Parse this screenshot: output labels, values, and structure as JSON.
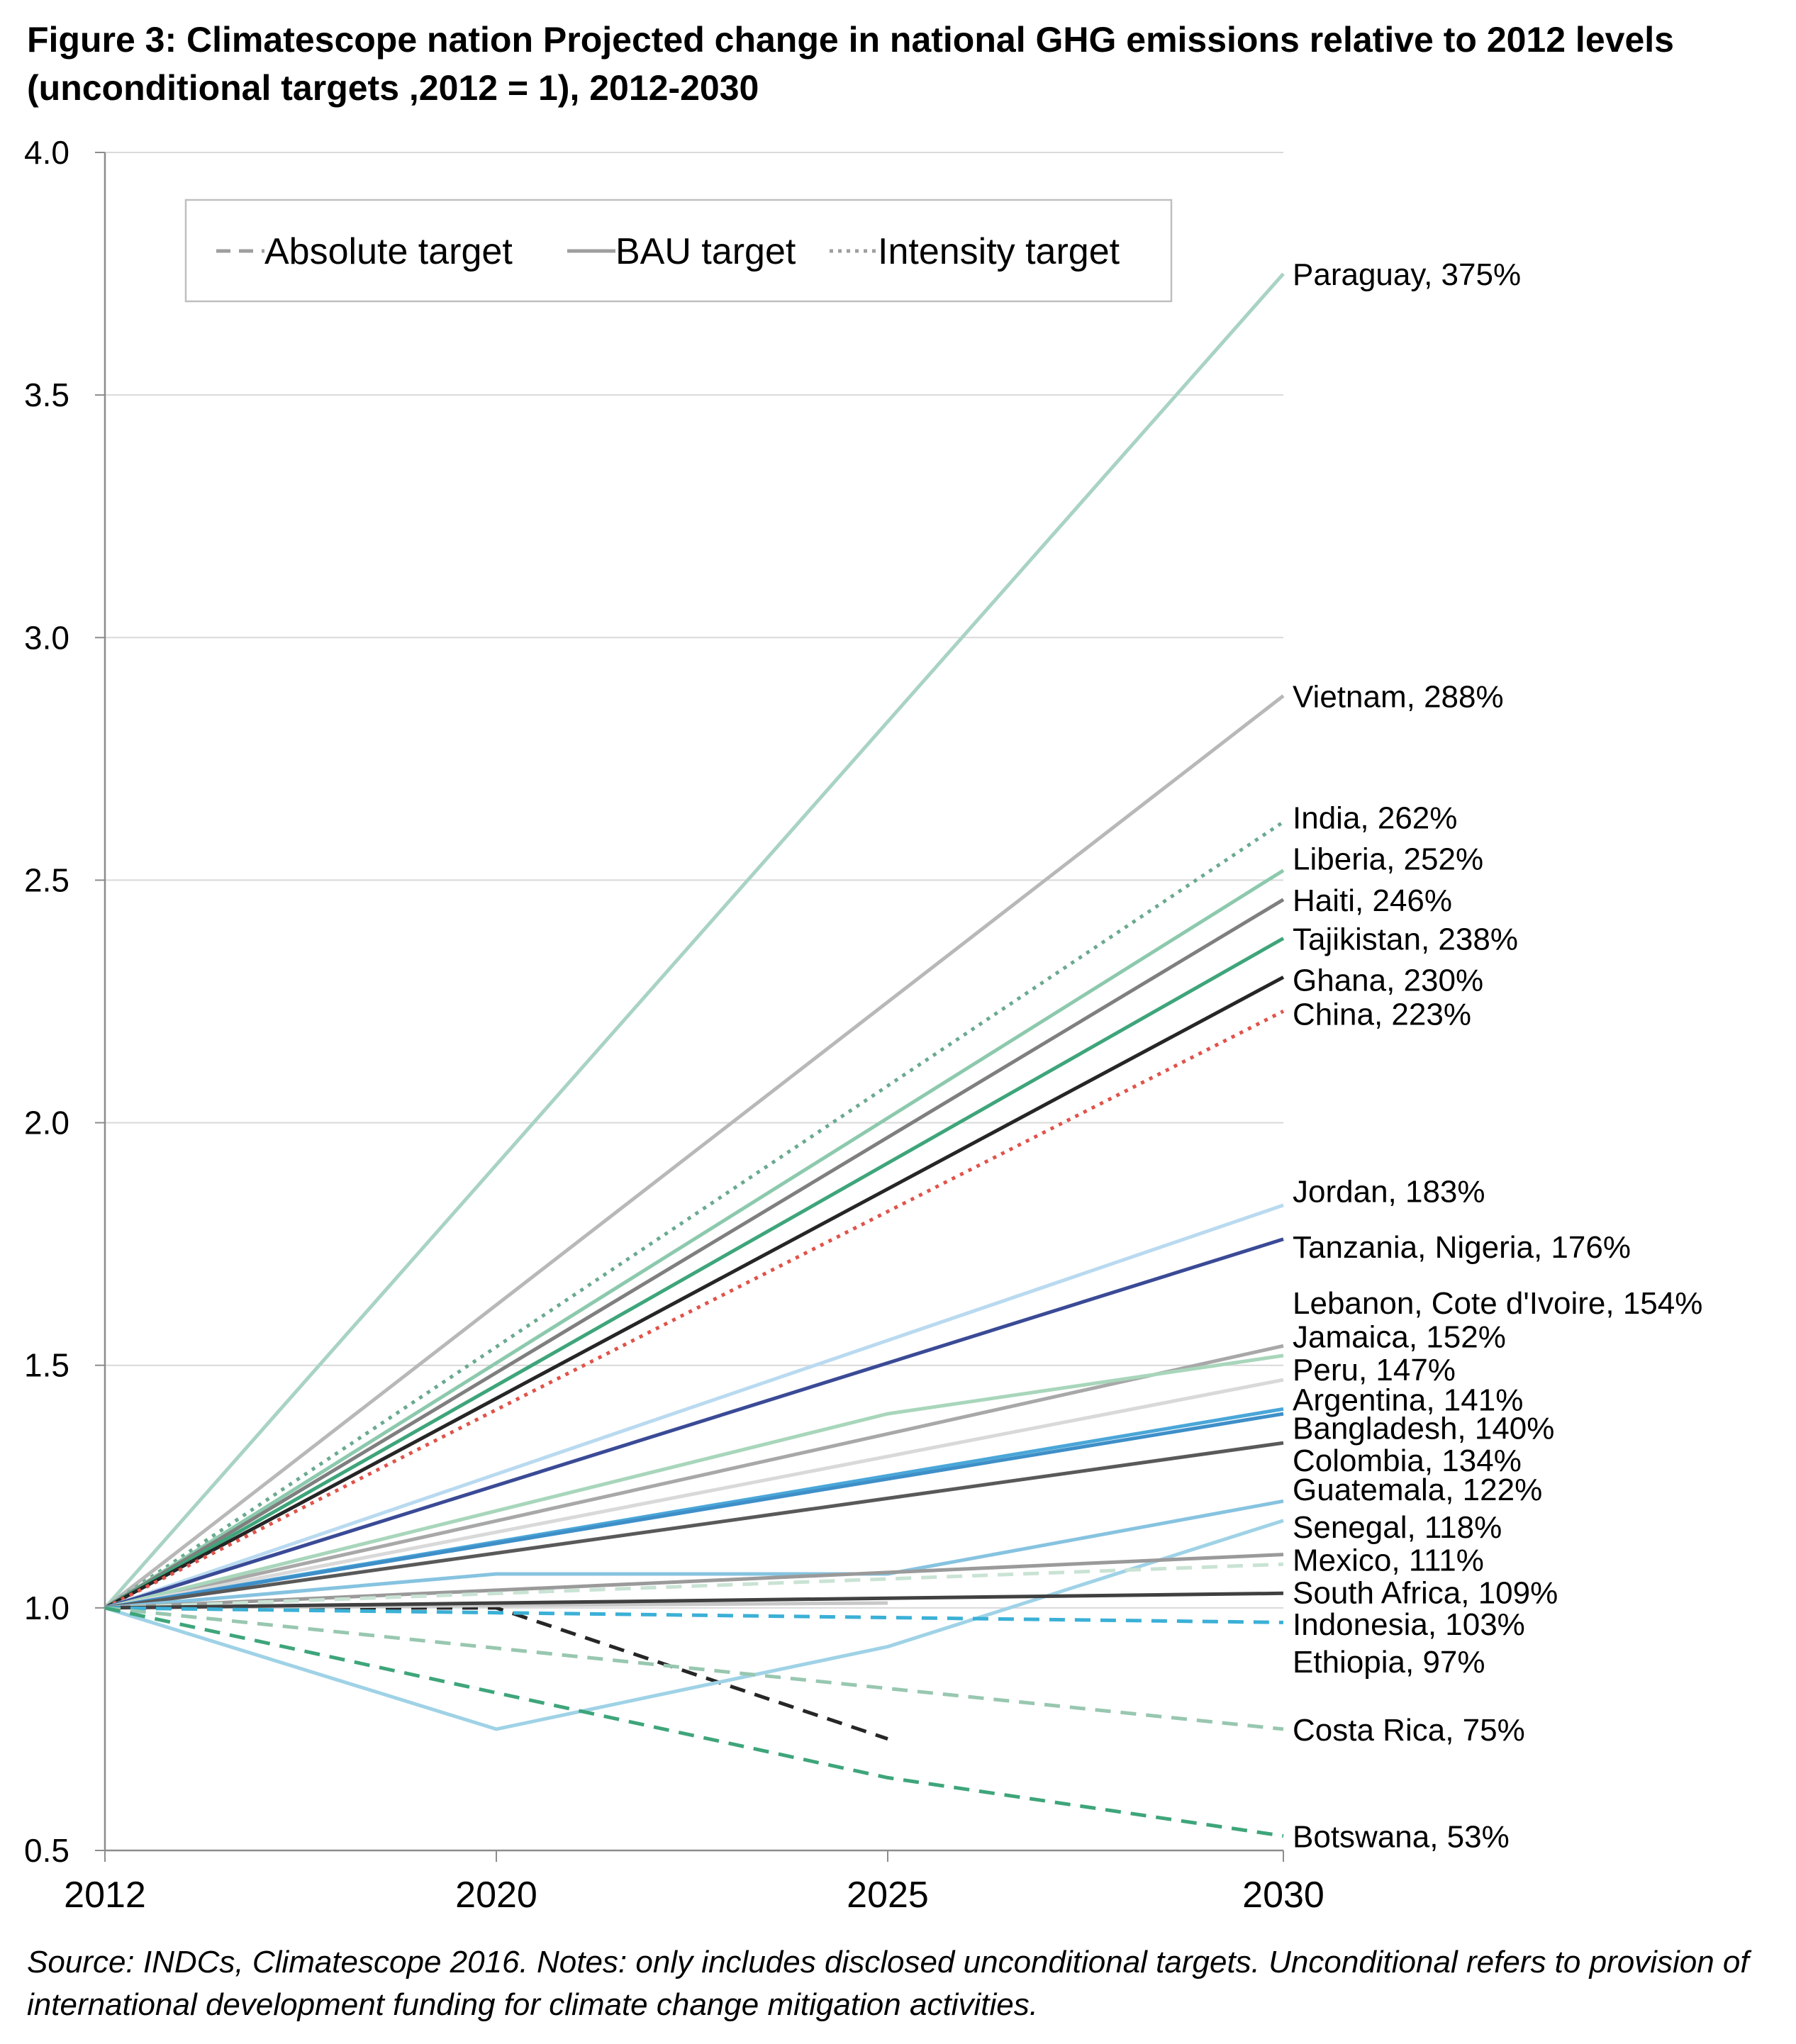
{
  "title": "Figure 3: Climatescope nation Projected change in national GHG emissions relative to 2012 levels (unconditional targets ,2012 = 1), 2012-2030",
  "source": "Source: INDCs, Climatescope 2016. Notes: only includes disclosed unconditional targets. Unconditional refers to provision of international development funding for climate change mitigation activities.",
  "chart_data": {
    "type": "line",
    "x_categories": [
      "2012",
      "2020",
      "2025",
      "2030"
    ],
    "y_ticks": [
      "0.5",
      "1.0",
      "1.5",
      "2.0",
      "2.5",
      "3.0",
      "3.5",
      "4.0"
    ],
    "ylim": [
      0.5,
      4.0
    ],
    "grid": "horizontal",
    "legend_position": "top-left",
    "legend": [
      {
        "label": "Absolute target",
        "style": "dashed",
        "color": "#9e9e9e"
      },
      {
        "label": "BAU target",
        "style": "solid",
        "color": "#9e9e9e"
      },
      {
        "label": "Intensity target",
        "style": "dotted",
        "color": "#9e9e9e"
      }
    ],
    "series": [
      {
        "label": "Paraguay, 375%",
        "style": "solid",
        "color": "#a9d3c3",
        "points": [
          [
            2012,
            1.0
          ],
          [
            2030,
            3.75
          ]
        ],
        "label_y": 3.75
      },
      {
        "label": "Vietnam, 288%",
        "style": "solid",
        "color": "#b8b8b8",
        "points": [
          [
            2012,
            1.0
          ],
          [
            2030,
            2.88
          ]
        ],
        "label_y": 2.88
      },
      {
        "label": "India, 262%",
        "style": "dotted",
        "color": "#6aaa8f",
        "points": [
          [
            2012,
            1.0
          ],
          [
            2030,
            2.62
          ]
        ],
        "label_y": 2.63
      },
      {
        "label": "Liberia, 252%",
        "style": "solid",
        "color": "#8cc9ad",
        "points": [
          [
            2012,
            1.0
          ],
          [
            2030,
            2.52
          ]
        ],
        "label_y": 2.545
      },
      {
        "label": "Haiti, 246%",
        "style": "solid",
        "color": "#7f7f7f",
        "points": [
          [
            2012,
            1.0
          ],
          [
            2030,
            2.46
          ]
        ],
        "label_y": 2.46
      },
      {
        "label": "Tajikistan, 238%",
        "style": "solid",
        "color": "#3ea57a",
        "points": [
          [
            2012,
            1.0
          ],
          [
            2030,
            2.38
          ]
        ],
        "label_y": 2.38
      },
      {
        "label": "Ghana, 230%",
        "style": "solid",
        "color": "#262626",
        "points": [
          [
            2012,
            1.0
          ],
          [
            2030,
            2.3
          ]
        ],
        "label_y": 2.295
      },
      {
        "label": "China, 223%",
        "style": "dotted",
        "color": "#e0534a",
        "points": [
          [
            2012,
            1.0
          ],
          [
            2030,
            2.23
          ]
        ],
        "label_y": 2.225
      },
      {
        "label": "Jordan, 183%",
        "style": "solid",
        "color": "#b9daf0",
        "points": [
          [
            2012,
            1.0
          ],
          [
            2030,
            1.83
          ]
        ],
        "label_y": 1.86
      },
      {
        "label": "Tanzania, Nigeria, 176%",
        "style": "solid",
        "color": "#3a4a96",
        "points": [
          [
            2012,
            1.0
          ],
          [
            2030,
            1.76
          ]
        ],
        "label_y": 1.745
      },
      {
        "label": "Lebanon, Cote d'Ivoire, 154%",
        "style": "solid",
        "color": "#a8a8a8",
        "points": [
          [
            2012,
            1.0
          ],
          [
            2030,
            1.54
          ]
        ],
        "label_y": 1.63
      },
      {
        "label": "Jamaica, 152%",
        "style": "solid",
        "color": "#a8d6bb",
        "points": [
          [
            2012,
            1.0
          ],
          [
            2025,
            1.4
          ],
          [
            2030,
            1.52
          ]
        ],
        "label_y": 1.56
      },
      {
        "label": "Peru, 147%",
        "style": "solid",
        "color": "#d9d9d9",
        "points": [
          [
            2012,
            1.0
          ],
          [
            2030,
            1.47
          ]
        ],
        "label_y": 1.492
      },
      {
        "label": "Argentina, 141%",
        "style": "solid",
        "color": "#4aa6d8",
        "points": [
          [
            2012,
            1.0
          ],
          [
            2030,
            1.41
          ]
        ],
        "label_y": 1.43
      },
      {
        "label": "Bangladesh, 140%",
        "style": "solid",
        "color": "#3e8fc8",
        "points": [
          [
            2012,
            1.0
          ],
          [
            2030,
            1.4
          ]
        ],
        "label_y": 1.372
      },
      {
        "label": "Colombia, 134%",
        "style": "solid",
        "color": "#595959",
        "points": [
          [
            2012,
            1.0
          ],
          [
            2030,
            1.34
          ]
        ],
        "label_y": 1.305
      },
      {
        "label": "Guatemala, 122%",
        "style": "solid",
        "color": "#86c3e0",
        "points": [
          [
            2012,
            1.0
          ],
          [
            2020,
            1.07
          ],
          [
            2025,
            1.07
          ],
          [
            2030,
            1.22
          ]
        ],
        "label_y": 1.245
      },
      {
        "label": "Senegal, 118%",
        "style": "solid",
        "color": "#9fd2e6",
        "points": [
          [
            2012,
            1.0
          ],
          [
            2020,
            0.75
          ],
          [
            2025,
            0.92
          ],
          [
            2030,
            1.18
          ]
        ],
        "label_y": 1.168
      },
      {
        "label": "Mexico, 111%",
        "style": "solid",
        "color": "#9a9a9a",
        "points": [
          [
            2012,
            1.0
          ],
          [
            2030,
            1.11
          ]
        ],
        "label_y": 1.1
      },
      {
        "label": "South Africa, 109%",
        "style": "dashed",
        "color": "#c9e3d4",
        "points": [
          [
            2012,
            1.0
          ],
          [
            2030,
            1.09
          ]
        ],
        "label_y": 1.033
      },
      {
        "label": "Indonesia, 103%",
        "style": "solid",
        "color": "#404040",
        "points": [
          [
            2012,
            1.0
          ],
          [
            2030,
            1.03
          ]
        ],
        "label_y": 0.968
      },
      {
        "label": "Ethiopia, 97%",
        "style": "dashed",
        "color": "#3bb0d6",
        "points": [
          [
            2012,
            1.0
          ],
          [
            2030,
            0.97
          ]
        ],
        "label_y": 0.89
      },
      {
        "label": "Costa Rica, 75%",
        "style": "dashed",
        "color": "#98c7b0",
        "points": [
          [
            2012,
            1.0
          ],
          [
            2030,
            0.75
          ]
        ],
        "label_y": 0.75
      },
      {
        "label": "Botswana, 53%",
        "style": "dashed",
        "color": "#3ea57a",
        "points": [
          [
            2012,
            1.0
          ],
          [
            2025,
            0.65
          ],
          [
            2030,
            0.53
          ]
        ],
        "label_y": 0.53
      }
    ],
    "unlabeled_series": [
      {
        "style": "dashed",
        "color": "#262626",
        "points": [
          [
            2012,
            1.0
          ],
          [
            2020,
            1.0
          ],
          [
            2025,
            0.73
          ]
        ]
      },
      {
        "style": "solid",
        "color": "#c8c8c8",
        "points": [
          [
            2012,
            1.0
          ],
          [
            2025,
            1.01
          ]
        ]
      }
    ]
  }
}
